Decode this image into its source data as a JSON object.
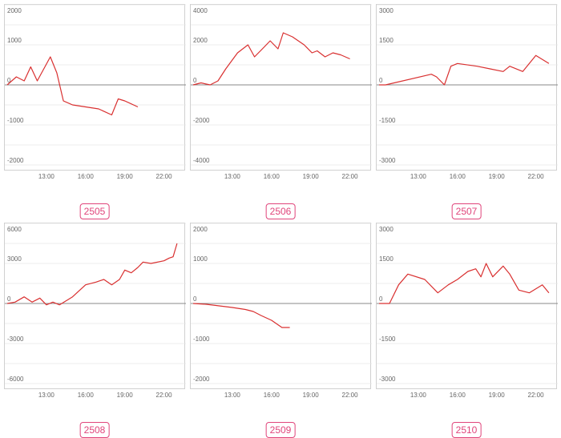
{
  "colors": {
    "line": "#d93030",
    "grid": "#e6e6e6",
    "zero": "#8a8a8a",
    "tick": "#666666",
    "tag": "#e0457b"
  },
  "chart_data": [
    {
      "type": "line",
      "label": "2505",
      "y_ticks": [
        "2000",
        "1000",
        "0",
        "-1000",
        "-2000"
      ],
      "ylim": [
        -2000,
        2000
      ],
      "x_ticks": [
        "13:00",
        "16:00",
        "19:00",
        "22:00"
      ],
      "xlim": [
        10,
        23.5
      ],
      "x": [
        10,
        10.7,
        11.3,
        11.8,
        12.3,
        13.3,
        13.8,
        14.3,
        15.0,
        17.0,
        18.0,
        18.5,
        19.0,
        20.0
      ],
      "y": [
        0,
        200,
        100,
        450,
        100,
        700,
        300,
        -400,
        -500,
        -600,
        -750,
        -350,
        -400,
        -550
      ]
    },
    {
      "type": "line",
      "label": "2506",
      "y_ticks": [
        "4000",
        "2000",
        "0",
        "-2000",
        "-4000"
      ],
      "ylim": [
        -4000,
        4000
      ],
      "x_ticks": [
        "13:00",
        "16:00",
        "19:00",
        "22:00"
      ],
      "xlim": [
        10,
        23.5
      ],
      "x": [
        10,
        10.6,
        11.3,
        11.9,
        12.5,
        13.4,
        14.2,
        14.7,
        15.3,
        15.9,
        16.5,
        16.9,
        17.6,
        18.5,
        19.1,
        19.5,
        20.1,
        20.7,
        21.3,
        22.0
      ],
      "y": [
        0,
        100,
        0,
        200,
        800,
        1600,
        2000,
        1400,
        1800,
        2200,
        1800,
        2600,
        2400,
        2000,
        1600,
        1700,
        1400,
        1600,
        1500,
        1300
      ]
    },
    {
      "type": "line",
      "label": "2507",
      "y_ticks": [
        "3000",
        "1500",
        "0",
        "-1500",
        "-3000"
      ],
      "ylim": [
        -3000,
        3000
      ],
      "x_ticks": [
        "13:00",
        "16:00",
        "19:00",
        "22:00"
      ],
      "xlim": [
        10,
        23.5
      ],
      "x": [
        10,
        10.5,
        14.0,
        14.4,
        15.0,
        15.5,
        16.0,
        17.5,
        18.5,
        19.5,
        20.0,
        21.0,
        22.0,
        23.0
      ],
      "y": [
        0,
        0,
        400,
        300,
        0,
        700,
        800,
        700,
        600,
        500,
        700,
        500,
        1100,
        800
      ]
    },
    {
      "type": "line",
      "label": "2508",
      "y_ticks": [
        "6000",
        "3000",
        "0",
        "-3000",
        "-6000"
      ],
      "ylim": [
        -6000,
        6000
      ],
      "x_ticks": [
        "13:00",
        "16:00",
        "19:00",
        "22:00"
      ],
      "xlim": [
        10,
        23.5
      ],
      "x": [
        10,
        10.6,
        11.3,
        11.9,
        12.5,
        13.0,
        13.5,
        14.0,
        15.0,
        16.0,
        16.8,
        17.4,
        18.0,
        18.6,
        19.0,
        19.5,
        20.0,
        20.4,
        21.0,
        22.0,
        22.4,
        22.7,
        23.0
      ],
      "y": [
        0,
        100,
        500,
        100,
        400,
        -100,
        100,
        -100,
        500,
        1400,
        1600,
        1800,
        1400,
        1800,
        2500,
        2300,
        2700,
        3100,
        3000,
        3200,
        3400,
        3500,
        4500
      ]
    },
    {
      "type": "line",
      "label": "2509",
      "y_ticks": [
        "2000",
        "1000",
        "0",
        "-1000",
        "-2000"
      ],
      "ylim": [
        -2000,
        2000
      ],
      "x_ticks": [
        "13:00",
        "16:00",
        "19:00",
        "22:00"
      ],
      "xlim": [
        10,
        23.5
      ],
      "x": [
        10,
        11.0,
        12.0,
        13.0,
        14.0,
        14.6,
        15.2,
        16.0,
        16.8,
        17.4
      ],
      "y": [
        0,
        -20,
        -60,
        -100,
        -150,
        -200,
        -300,
        -420,
        -600,
        -600
      ]
    },
    {
      "type": "line",
      "label": "2510",
      "y_ticks": [
        "3000",
        "1500",
        "0",
        "-1500",
        "-3000"
      ],
      "ylim": [
        -3000,
        3000
      ],
      "x_ticks": [
        "13:00",
        "16:00",
        "19:00",
        "22:00"
      ],
      "xlim": [
        10,
        23.5
      ],
      "x": [
        10,
        10.8,
        11.5,
        12.2,
        13.5,
        14.5,
        15.3,
        16.0,
        16.8,
        17.4,
        17.8,
        18.2,
        18.7,
        19.5,
        20.0,
        20.7,
        21.5,
        22.5,
        23.0
      ],
      "y": [
        0,
        0,
        700,
        1100,
        900,
        400,
        700,
        900,
        1200,
        1300,
        1000,
        1500,
        1000,
        1400,
        1100,
        500,
        400,
        700,
        400
      ]
    }
  ]
}
